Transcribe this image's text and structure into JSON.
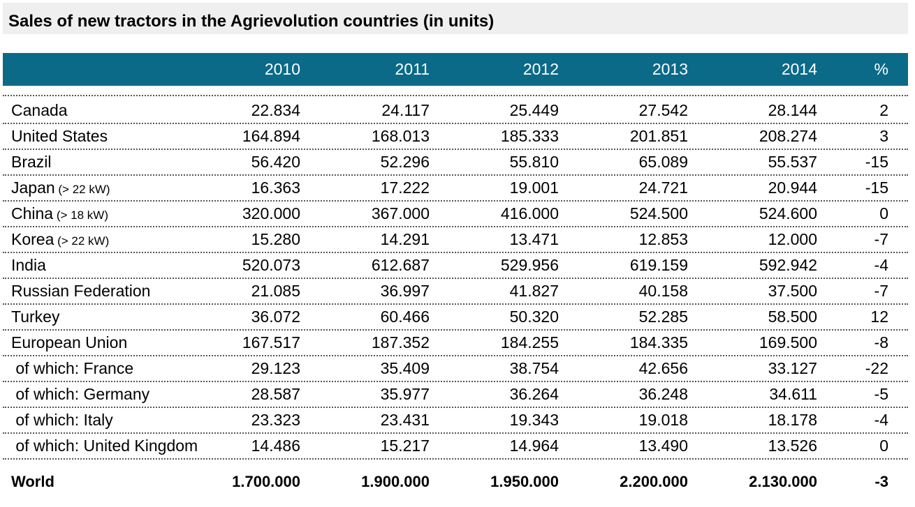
{
  "title": "Sales of new tractors in the Agrievolution countries (in units)",
  "columns": [
    "",
    "2010",
    "2011",
    "2012",
    "2013",
    "2014",
    "%"
  ],
  "rows": [
    {
      "name": "Canada",
      "note": "",
      "values": [
        "22.834",
        "24.117",
        "25.449",
        "27.542",
        "28.144",
        "2"
      ]
    },
    {
      "name": "United States",
      "note": "",
      "values": [
        "164.894",
        "168.013",
        "185.333",
        "201.851",
        "208.274",
        "3"
      ]
    },
    {
      "name": "Brazil",
      "note": "",
      "values": [
        "56.420",
        "52.296",
        "55.810",
        "65.089",
        "55.537",
        "-15"
      ]
    },
    {
      "name": "Japan",
      "note": "(> 22 kW)",
      "values": [
        "16.363",
        "17.222",
        "19.001",
        "24.721",
        "20.944",
        "-15"
      ]
    },
    {
      "name": "China",
      "note": "(> 18 kW)",
      "values": [
        "320.000",
        "367.000",
        "416.000",
        "524.500",
        "524.600",
        "0"
      ]
    },
    {
      "name": "Korea",
      "note": "(> 22 kW)",
      "values": [
        "15.280",
        "14.291",
        "13.471",
        "12.853",
        "12.000",
        "-7"
      ]
    },
    {
      "name": "India",
      "note": "",
      "values": [
        "520.073",
        "612.687",
        "529.956",
        "619.159",
        "592.942",
        "-4"
      ]
    },
    {
      "name": "Russian Federation",
      "note": "",
      "values": [
        "21.085",
        "36.997",
        "41.827",
        "40.158",
        "37.500",
        "-7"
      ]
    },
    {
      "name": "Turkey",
      "note": "",
      "values": [
        "36.072",
        "60.466",
        "50.320",
        "52.285",
        "58.500",
        "12"
      ]
    },
    {
      "name": "European Union",
      "note": "",
      "values": [
        "167.517",
        "187.352",
        "184.255",
        "184.335",
        "169.500",
        "-8"
      ]
    },
    {
      "name": " of which: France",
      "note": "",
      "values": [
        "29.123",
        "35.409",
        "38.754",
        "42.656",
        "33.127",
        "-22"
      ]
    },
    {
      "name": " of which: Germany",
      "note": "",
      "values": [
        "28.587",
        "35.977",
        "36.264",
        "36.248",
        "34.611",
        "-5"
      ]
    },
    {
      "name": " of which: Italy",
      "note": "",
      "values": [
        "23.323",
        "23.431",
        "19.343",
        "19.018",
        "18.178",
        "-4"
      ]
    },
    {
      "name": " of which: United Kingdom",
      "note": "",
      "values": [
        "14.486",
        "15.217",
        "14.964",
        "13.490",
        "13.526",
        "0"
      ]
    }
  ],
  "total": {
    "name": "World",
    "values": [
      "1.700.000",
      "1.900.000",
      "1.950.000",
      "2.200.000",
      "2.130.000",
      "-3"
    ]
  },
  "colors": {
    "header_bg": "#0b6a88",
    "title_bg": "#efefef"
  }
}
